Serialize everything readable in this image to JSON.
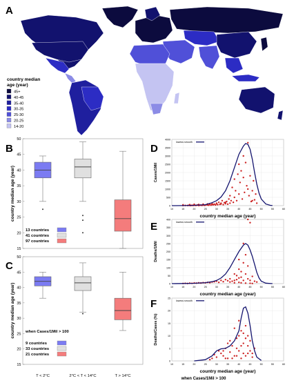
{
  "colors": {
    "map_scale": [
      "#0c0b3e",
      "#12126e",
      "#1f1f9e",
      "#2c2cc4",
      "#5050d8",
      "#8c8ce6",
      "#c4c4f2"
    ],
    "box_cold": "#7b7bf2",
    "box_mid": "#e0e0e0",
    "box_hot": "#f47c7c",
    "scatter_points": "#cc2222",
    "smooth_line": "#13136e"
  },
  "panels": {
    "map": {
      "letter": "A"
    },
    "b": {
      "letter": "B"
    },
    "c": {
      "letter": "C"
    },
    "d": {
      "letter": "D"
    },
    "e": {
      "letter": "E"
    },
    "f": {
      "letter": "F"
    }
  },
  "chart_data": [
    {
      "panel": "A",
      "type": "map",
      "legend_title": [
        "country median",
        "age (year)"
      ],
      "legend_items": [
        "45+",
        "40-45",
        "35-40",
        "30-35",
        "25-30",
        "20-25",
        "14-20"
      ]
    },
    {
      "panel": "B",
      "type": "box",
      "ylabel": "country  median age (year)",
      "ylim": [
        15,
        50
      ],
      "yticks": [
        15,
        20,
        25,
        30,
        35,
        40,
        45,
        50
      ],
      "categories": [
        "T < 2°C",
        "2°C < T < 14°C",
        "T > 14°C"
      ],
      "boxes": [
        {
          "whisker_low": 30,
          "q1": 37.5,
          "median": 40,
          "q3": 42.5,
          "whisker_high": 44.5,
          "outliers": [
            27.5
          ]
        },
        {
          "whisker_low": 30,
          "q1": 37.5,
          "median": 41,
          "q3": 43.5,
          "whisker_high": 49,
          "outliers": [
            25.5,
            24,
            20
          ]
        },
        {
          "whisker_low": 15,
          "q1": 20.5,
          "median": 24.5,
          "q3": 30.5,
          "whisker_high": 46,
          "outliers": []
        }
      ],
      "legend": [
        "13 countries",
        "41 countries",
        "97 countries"
      ]
    },
    {
      "panel": "C",
      "type": "box",
      "ylabel": "country  median age (year)",
      "ylim": [
        15,
        50
      ],
      "yticks": [
        15,
        20,
        25,
        30,
        35,
        40,
        45,
        50
      ],
      "categories": [
        "T < 2°C",
        "2°C < T < 14°C",
        "T > 14°C"
      ],
      "boxes": [
        {
          "whisker_low": 36.5,
          "q1": 40.5,
          "median": 42,
          "q3": 43.5,
          "whisker_high": 45,
          "outliers": []
        },
        {
          "whisker_low": 32,
          "q1": 39,
          "median": 41.5,
          "q3": 43.5,
          "whisker_high": 48,
          "outliers": [
            31.5
          ]
        },
        {
          "whisker_low": 26,
          "q1": 29.5,
          "median": 32.5,
          "q3": 36.5,
          "whisker_high": 45,
          "outliers": []
        }
      ],
      "note": "when Cases/1Mil > 100",
      "legend": [
        "9 countries",
        "33 countries",
        "21 countries"
      ]
    },
    {
      "panel": "D",
      "type": "scatter",
      "legend": "lowess smooth",
      "xlabel": "country  median age (year)",
      "ylabel": "Cases/1Mil",
      "xlim": [
        10,
        60
      ],
      "ylim": [
        0,
        4000
      ],
      "xticks": [
        10,
        15,
        20,
        25,
        30,
        35,
        40,
        45,
        50,
        55,
        60
      ],
      "yticks": [
        0,
        500,
        1000,
        1500,
        2000,
        2500,
        3000,
        3500,
        4000
      ],
      "points": [
        [
          15,
          5
        ],
        [
          16,
          10
        ],
        [
          17,
          8
        ],
        [
          17.5,
          20
        ],
        [
          18,
          15
        ],
        [
          18.5,
          5
        ],
        [
          19,
          25
        ],
        [
          19.5,
          10
        ],
        [
          20,
          30
        ],
        [
          20.5,
          15
        ],
        [
          21,
          20
        ],
        [
          21.5,
          40
        ],
        [
          22,
          10
        ],
        [
          22.5,
          25
        ],
        [
          23,
          35
        ],
        [
          23.5,
          15
        ],
        [
          24,
          50
        ],
        [
          24.5,
          20
        ],
        [
          25,
          30
        ],
        [
          25.5,
          60
        ],
        [
          26,
          40
        ],
        [
          26.5,
          25
        ],
        [
          27,
          80
        ],
        [
          27.5,
          30
        ],
        [
          28,
          120
        ],
        [
          28.5,
          50
        ],
        [
          29,
          90
        ],
        [
          29.5,
          40
        ],
        [
          30,
          150
        ],
        [
          30.5,
          60
        ],
        [
          31,
          200
        ],
        [
          31.5,
          80
        ],
        [
          32,
          100
        ],
        [
          32.5,
          300
        ],
        [
          33,
          60
        ],
        [
          33.5,
          180
        ],
        [
          34,
          120
        ],
        [
          34.5,
          250
        ],
        [
          35,
          90
        ],
        [
          35.5,
          400
        ],
        [
          36,
          150
        ],
        [
          36.5,
          300
        ],
        [
          37,
          1100
        ],
        [
          37.5,
          200
        ],
        [
          38,
          500
        ],
        [
          38.5,
          900
        ],
        [
          39,
          300
        ],
        [
          39.5,
          1900
        ],
        [
          40,
          700
        ],
        [
          40.5,
          1400
        ],
        [
          41,
          2100
        ],
        [
          41.5,
          400
        ],
        [
          42,
          3000
        ],
        [
          42.5,
          800
        ],
        [
          43,
          2600
        ],
        [
          43.5,
          1200
        ],
        [
          44,
          3800
        ],
        [
          44.5,
          600
        ],
        [
          45,
          1800
        ],
        [
          45.5,
          250
        ],
        [
          46,
          900
        ],
        [
          46.5,
          1500
        ],
        [
          47,
          350
        ],
        [
          47.5,
          700
        ],
        [
          48,
          150
        ],
        [
          15,
          50
        ],
        [
          18,
          60
        ],
        [
          20,
          80
        ],
        [
          22,
          70
        ],
        [
          24,
          90
        ],
        [
          26,
          100
        ],
        [
          28,
          70
        ],
        [
          30,
          110
        ],
        [
          32,
          150
        ],
        [
          34,
          200
        ],
        [
          36,
          600
        ],
        [
          38,
          1600
        ],
        [
          40,
          2500
        ],
        [
          42,
          1700
        ],
        [
          44,
          1000
        ],
        [
          46,
          300
        ]
      ],
      "smooth": [
        [
          10,
          0
        ],
        [
          15,
          5
        ],
        [
          20,
          20
        ],
        [
          25,
          60
        ],
        [
          28,
          180
        ],
        [
          30,
          300
        ],
        [
          32,
          520
        ],
        [
          34,
          900
        ],
        [
          36,
          1500
        ],
        [
          38,
          2300
        ],
        [
          40,
          3100
        ],
        [
          42,
          3600
        ],
        [
          43,
          3750
        ],
        [
          44,
          3700
        ],
        [
          45,
          3400
        ],
        [
          46,
          2800
        ],
        [
          47,
          2000
        ],
        [
          48,
          1300
        ],
        [
          49,
          750
        ],
        [
          50,
          400
        ],
        [
          52,
          100
        ],
        [
          54,
          20
        ],
        [
          55,
          5
        ]
      ]
    },
    {
      "panel": "E",
      "type": "scatter",
      "legend": "lowess smooth",
      "xlabel": "country  median age (year)",
      "ylabel": "Deaths/1Mil",
      "xlim": [
        10,
        60
      ],
      "ylim": [
        0,
        400
      ],
      "xticks": [
        10,
        15,
        20,
        25,
        30,
        35,
        40,
        45,
        50,
        55,
        60
      ],
      "yticks": [
        0,
        50,
        100,
        150,
        200,
        250,
        300,
        350,
        400
      ],
      "points": [
        [
          15,
          1
        ],
        [
          16,
          2
        ],
        [
          17,
          1
        ],
        [
          18,
          3
        ],
        [
          19,
          2
        ],
        [
          20,
          4
        ],
        [
          21,
          3
        ],
        [
          22,
          5
        ],
        [
          23,
          4
        ],
        [
          24,
          6
        ],
        [
          25,
          5
        ],
        [
          26,
          8
        ],
        [
          27,
          6
        ],
        [
          28,
          10
        ],
        [
          29,
          12
        ],
        [
          30,
          15
        ],
        [
          31,
          8
        ],
        [
          32,
          20
        ],
        [
          33,
          12
        ],
        [
          34,
          25
        ],
        [
          35,
          18
        ],
        [
          36,
          30
        ],
        [
          37,
          15
        ],
        [
          38,
          60
        ],
        [
          39,
          25
        ],
        [
          40,
          90
        ],
        [
          41,
          40
        ],
        [
          42,
          130
        ],
        [
          43,
          60
        ],
        [
          44,
          110
        ],
        [
          45,
          20
        ],
        [
          46,
          45
        ],
        [
          47,
          15
        ],
        [
          48,
          10
        ],
        [
          36,
          10
        ],
        [
          38,
          5
        ],
        [
          40,
          8
        ],
        [
          42,
          20
        ],
        [
          44,
          30
        ],
        [
          38,
          20
        ],
        [
          40,
          35
        ],
        [
          41,
          75
        ],
        [
          43,
          180
        ],
        [
          44,
          400
        ],
        [
          45,
          380
        ],
        [
          42,
          250
        ],
        [
          40,
          150
        ],
        [
          39,
          50
        ],
        [
          41,
          5
        ],
        [
          43,
          3
        ],
        [
          45,
          2
        ],
        [
          46,
          1
        ]
      ],
      "smooth": [
        [
          10,
          0
        ],
        [
          15,
          1
        ],
        [
          20,
          2
        ],
        [
          25,
          6
        ],
        [
          28,
          12
        ],
        [
          30,
          20
        ],
        [
          32,
          35
        ],
        [
          34,
          60
        ],
        [
          36,
          100
        ],
        [
          38,
          150
        ],
        [
          40,
          200
        ],
        [
          42,
          240
        ],
        [
          43,
          250
        ],
        [
          44,
          240
        ],
        [
          45,
          210
        ],
        [
          46,
          170
        ],
        [
          47,
          120
        ],
        [
          48,
          70
        ],
        [
          49,
          35
        ],
        [
          50,
          15
        ],
        [
          52,
          3
        ],
        [
          55,
          0
        ]
      ]
    },
    {
      "panel": "F",
      "type": "scatter",
      "legend": "lowess smooth",
      "xlabel": "country  median age (year)",
      "ylabel": "Deaths/Cases (%)",
      "note": "when Cases/1Mil > 100",
      "xlim": [
        10,
        60
      ],
      "ylim": [
        0,
        25
      ],
      "xticks": [
        10,
        15,
        20,
        25,
        30,
        35,
        40,
        45,
        50,
        55,
        60
      ],
      "yticks": [
        0,
        5,
        10,
        15,
        20,
        25
      ],
      "points": [
        [
          27,
          0.5
        ],
        [
          28,
          1
        ],
        [
          29,
          2.5
        ],
        [
          30,
          1.5
        ],
        [
          31,
          4
        ],
        [
          32,
          3
        ],
        [
          33,
          2
        ],
        [
          34,
          5
        ],
        [
          35,
          1
        ],
        [
          36,
          3.5
        ],
        [
          37,
          6
        ],
        [
          38,
          2
        ],
        [
          39,
          9
        ],
        [
          40,
          4
        ],
        [
          41,
          12
        ],
        [
          42,
          7
        ],
        [
          43,
          14
        ],
        [
          44,
          3
        ],
        [
          45,
          8
        ],
        [
          46,
          1.5
        ],
        [
          47,
          5
        ],
        [
          38,
          13
        ],
        [
          40,
          16
        ],
        [
          42,
          3
        ],
        [
          44,
          10
        ],
        [
          36,
          8
        ],
        [
          39,
          2
        ],
        [
          41,
          6
        ],
        [
          43,
          9
        ],
        [
          45,
          4
        ],
        [
          37,
          1
        ],
        [
          39,
          5
        ],
        [
          41,
          1
        ],
        [
          43,
          2
        ],
        [
          40,
          10
        ],
        [
          42,
          11
        ],
        [
          44,
          6
        ],
        [
          35,
          7
        ],
        [
          34,
          1
        ],
        [
          33,
          4
        ],
        [
          46,
          3
        ]
      ],
      "smooth": [
        [
          20,
          0
        ],
        [
          25,
          0.5
        ],
        [
          28,
          2
        ],
        [
          30,
          4
        ],
        [
          32,
          4.8
        ],
        [
          34,
          5
        ],
        [
          36,
          6
        ],
        [
          38,
          8
        ],
        [
          40,
          12
        ],
        [
          41,
          17
        ],
        [
          42,
          21
        ],
        [
          43,
          21.5
        ],
        [
          44,
          19
        ],
        [
          45,
          14
        ],
        [
          46,
          8
        ],
        [
          47,
          4
        ],
        [
          48,
          1.5
        ],
        [
          50,
          0.2
        ]
      ]
    }
  ]
}
